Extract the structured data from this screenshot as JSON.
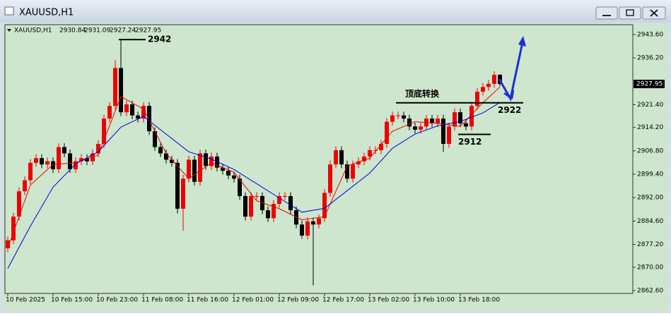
{
  "chart_data": {
    "type": "candlestick",
    "title": "XAUUSD,H1",
    "categories": [
      "10 Feb 2025",
      null,
      null,
      null,
      null,
      null,
      null,
      null,
      "10 Feb 15:00",
      null,
      null,
      null,
      null,
      null,
      null,
      null,
      "10 Feb 23:00",
      null,
      null,
      null,
      null,
      null,
      null,
      null,
      "11 Feb 08:00",
      null,
      null,
      null,
      null,
      null,
      null,
      null,
      "11 Feb 16:00",
      null,
      null,
      null,
      null,
      null,
      null,
      null,
      "12 Feb 01:00",
      null,
      null,
      null,
      null,
      null,
      null,
      null,
      "12 Feb 09:00",
      null,
      null,
      null,
      null,
      null,
      null,
      null,
      "12 Feb 17:00",
      null,
      null,
      null,
      null,
      null,
      null,
      null,
      "13 Feb 02:00",
      null,
      null,
      null,
      null,
      null,
      null,
      null,
      "13 Feb 10:00",
      null,
      null,
      null,
      null,
      null,
      null,
      null,
      "13 Feb 18:00",
      null,
      null,
      null,
      null,
      null,
      null,
      null
    ],
    "open": [
      2876.0,
      2878.5,
      2886.0,
      2894.0,
      2897.5,
      2903.0,
      2904.5,
      2902.5,
      2903.5,
      2901.0,
      2908.0,
      2906.0,
      2901.0,
      2903.5,
      2904.5,
      2903.5,
      2906.0,
      2909.0,
      2917.0,
      2921.0,
      2933.0,
      2919.0,
      2921.5,
      2918.0,
      2917.0,
      2921.0,
      2913.0,
      2908.0,
      2906.0,
      2904.0,
      2903.0,
      2888.5,
      2898.0,
      2904.0,
      2897.0,
      2906.0,
      2902.0,
      2905.0,
      2901.5,
      2900.5,
      2899.0,
      2898.0,
      2892.5,
      2886.0,
      2892.5,
      2892.5,
      2888.0,
      2885.5,
      2890.0,
      2892.5,
      2892.5,
      2888.0,
      2883.5,
      2880.0,
      2884.5,
      2883.5,
      2885.5,
      2893.5,
      2902.5,
      2907.0,
      2902.5,
      2898.0,
      2902.5,
      2903.5,
      2905.0,
      2907.0,
      2907.0,
      2909.0,
      2916.0,
      2918.0,
      2918.0,
      2917.0,
      2914.5,
      2913.5,
      2914.5,
      2917.0,
      2915.5,
      2917.0,
      2909.0,
      2914.5,
      2919.0,
      2915.5,
      2914.5,
      2921.0,
      2925.5,
      2927.0,
      2928.0,
      2930.84
    ],
    "high": [
      2879.7,
      2887.2,
      2895.2,
      2898.7,
      2904.2,
      2905.7,
      2905.7,
      2904.7,
      2904.7,
      2909.2,
      2909.2,
      2907.2,
      2904.7,
      2905.7,
      2905.7,
      2907.2,
      2910.2,
      2918.2,
      2922.2,
      2935.5,
      2942.0,
      2922.7,
      2922.7,
      2919.2,
      2922.2,
      2922.2,
      2914.2,
      2909.2,
      2907.2,
      2905.2,
      2904.2,
      2899.2,
      2905.2,
      2905.2,
      2907.2,
      2907.2,
      2906.2,
      2906.2,
      2902.7,
      2901.7,
      2900.2,
      2899.2,
      2893.7,
      2893.7,
      2893.7,
      2893.7,
      2889.2,
      2891.2,
      2893.7,
      2893.7,
      2893.7,
      2889.2,
      2884.7,
      2885.7,
      2885.7,
      2886.7,
      2894.7,
      2903.7,
      2908.2,
      2908.2,
      2903.7,
      2903.7,
      2904.7,
      2906.2,
      2908.2,
      2908.2,
      2910.2,
      2917.2,
      2919.2,
      2919.2,
      2919.2,
      2918.2,
      2915.7,
      2915.7,
      2918.2,
      2918.2,
      2918.2,
      2918.2,
      2915.7,
      2920.2,
      2920.2,
      2916.7,
      2922.2,
      2926.7,
      2928.2,
      2929.2,
      2932.0,
      2931.09
    ],
    "low": [
      2874.8,
      2877.3,
      2884.8,
      2892.8,
      2896.3,
      2901.8,
      2901.3,
      2901.3,
      2899.8,
      2899.8,
      2904.8,
      2899.8,
      2899.8,
      2902.3,
      2902.3,
      2902.3,
      2904.8,
      2907.8,
      2915.8,
      2919.8,
      2917.8,
      2917.8,
      2916.8,
      2915.8,
      2915.8,
      2911.8,
      2906.8,
      2904.8,
      2902.8,
      2901.8,
      2887.0,
      2881.5,
      2896.8,
      2895.8,
      2895.8,
      2900.8,
      2900.8,
      2900.3,
      2899.3,
      2897.8,
      2896.8,
      2891.3,
      2884.8,
      2884.8,
      2891.3,
      2886.8,
      2884.3,
      2884.3,
      2888.8,
      2891.3,
      2886.8,
      2882.3,
      2879.0,
      2878.8,
      2864.2,
      2882.3,
      2884.3,
      2892.3,
      2901.3,
      2901.3,
      2896.8,
      2896.8,
      2901.3,
      2902.3,
      2903.8,
      2905.8,
      2905.8,
      2907.8,
      2914.8,
      2916.8,
      2915.8,
      2913.3,
      2912.3,
      2912.3,
      2913.3,
      2914.3,
      2914.3,
      2906.5,
      2907.8,
      2913.3,
      2914.3,
      2913.3,
      2913.3,
      2919.8,
      2924.3,
      2925.8,
      2926.8,
      2927.24
    ],
    "close": [
      2878.5,
      2886.0,
      2894.0,
      2897.5,
      2903.0,
      2904.5,
      2902.5,
      2903.5,
      2901.0,
      2908.0,
      2906.0,
      2901.0,
      2903.5,
      2904.5,
      2903.5,
      2906.0,
      2909.0,
      2917.0,
      2921.0,
      2933.0,
      2919.0,
      2921.5,
      2918.0,
      2917.0,
      2921.0,
      2913.0,
      2908.0,
      2906.0,
      2904.0,
      2903.0,
      2888.5,
      2898.0,
      2904.0,
      2897.0,
      2906.0,
      2902.0,
      2905.0,
      2901.5,
      2900.5,
      2899.0,
      2898.0,
      2892.5,
      2886.0,
      2892.5,
      2892.5,
      2888.0,
      2885.5,
      2890.0,
      2892.5,
      2892.5,
      2888.0,
      2883.5,
      2880.0,
      2884.5,
      2883.5,
      2885.5,
      2893.5,
      2902.5,
      2907.0,
      2902.5,
      2898.0,
      2902.5,
      2903.5,
      2905.0,
      2907.0,
      2907.0,
      2909.0,
      2916.0,
      2918.0,
      2918.0,
      2917.0,
      2914.5,
      2913.5,
      2914.5,
      2917.0,
      2915.5,
      2917.0,
      2909.0,
      2914.5,
      2919.0,
      2915.5,
      2914.5,
      2921.0,
      2925.5,
      2927.0,
      2928.0,
      2930.84,
      2927.95
    ],
    "up_color": "#ee0000",
    "down_color": "#000000",
    "lines": [
      {
        "color": "#ee0000",
        "x": [
          0,
          4,
          8,
          12,
          16,
          20,
          24,
          28,
          32,
          36,
          40,
          44,
          48,
          52,
          56,
          60,
          64,
          68,
          72,
          76,
          80,
          84,
          87
        ],
        "values": [
          2876,
          2896,
          2902.5,
          2903,
          2905.5,
          2924,
          2920,
          2906,
          2898,
          2903,
          2900,
          2891,
          2888.5,
          2885,
          2886,
          2902,
          2904.5,
          2913,
          2916,
          2915.5,
          2914.5,
          2922,
          2927
        ]
      },
      {
        "color": "#0000dd",
        "x": [
          0,
          4,
          8,
          12,
          16,
          20,
          24,
          28,
          32,
          36,
          40,
          44,
          48,
          52,
          56,
          60,
          64,
          68,
          72,
          76,
          80,
          84,
          87
        ],
        "values": [
          2869.6,
          2883.0,
          2895.3,
          2902.7,
          2906.5,
          2914.3,
          2917.7,
          2912.1,
          2906.5,
          2904.2,
          2900.9,
          2896.4,
          2891.9,
          2887.4,
          2888.6,
          2894.2,
          2899.8,
          2907.6,
          2912.1,
          2914.7,
          2916.1,
          2918.8,
          2922.1
        ]
      }
    ],
    "ylim": [
      2861.7,
      2946.7
    ],
    "yticks": [
      {
        "value": 2943.6,
        "label": "2943.60"
      },
      {
        "value": 2936.2,
        "label": "2936.20"
      },
      {
        "value": 2921.4,
        "label": "2921.40"
      },
      {
        "value": 2914.2,
        "label": "2914.20"
      },
      {
        "value": 2906.8,
        "label": "2906.80"
      },
      {
        "value": 2899.4,
        "label": "2899.40"
      },
      {
        "value": 2892.0,
        "label": "2892.00"
      },
      {
        "value": 2884.6,
        "label": "2884.60"
      },
      {
        "value": 2877.2,
        "label": "2877.20"
      },
      {
        "value": 2870.0,
        "label": "2870.00"
      },
      {
        "value": 2862.6,
        "label": "2862.60"
      }
    ],
    "levels": [
      2942,
      2922,
      2912
    ],
    "annotation": "顶底转换"
  }
}
